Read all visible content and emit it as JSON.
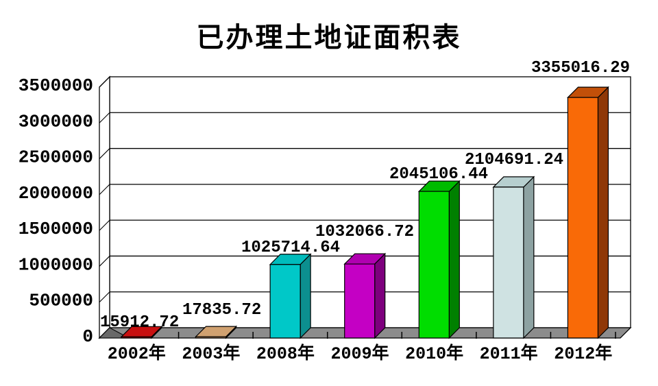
{
  "chart_data": {
    "type": "bar",
    "projection": "3d",
    "title": "已办理土地证面积表",
    "categories": [
      "2002年",
      "2003年",
      "2008年",
      "2009年",
      "2010年",
      "2011年",
      "2012年"
    ],
    "values": [
      15912.72,
      17835.72,
      1025714.64,
      1032066.72,
      2045106.44,
      2104691.24,
      3355016.29
    ],
    "value_labels": [
      "15912.72",
      "17835.72",
      "1025714.64",
      "1032066.72",
      "2045106.44",
      "2104691.24",
      "3355016.29"
    ],
    "y_ticks": [
      "0",
      "500000",
      "1000000",
      "1500000",
      "2000000",
      "2500000",
      "3000000",
      "3500000"
    ],
    "ylim": [
      0,
      3500000
    ],
    "xlabel": "",
    "ylabel": "",
    "grid": true,
    "legend": false,
    "bar_colors": [
      {
        "front": "#c00000",
        "top": "#c81010",
        "side": "#7a0000"
      },
      {
        "front": "#c99767",
        "top": "#d0a170",
        "side": "#8a6136"
      },
      {
        "front": "#00c8c8",
        "top": "#00bcbc",
        "side": "#0c8f8f"
      },
      {
        "front": "#c400c4",
        "top": "#b000b0",
        "side": "#7d007d"
      },
      {
        "front": "#00dd00",
        "top": "#00bb00",
        "side": "#008000"
      },
      {
        "front": "#cfe2e2",
        "top": "#b7cfcf",
        "side": "#8da2a2"
      },
      {
        "front": "#f96a07",
        "top": "#c25009",
        "side": "#8f3807"
      }
    ],
    "floor_color": "#8c8c8c",
    "floor_bevel_color": "#696969",
    "wall_color": "#ffffff",
    "line_color": "#000000",
    "text_color": "#000000"
  }
}
